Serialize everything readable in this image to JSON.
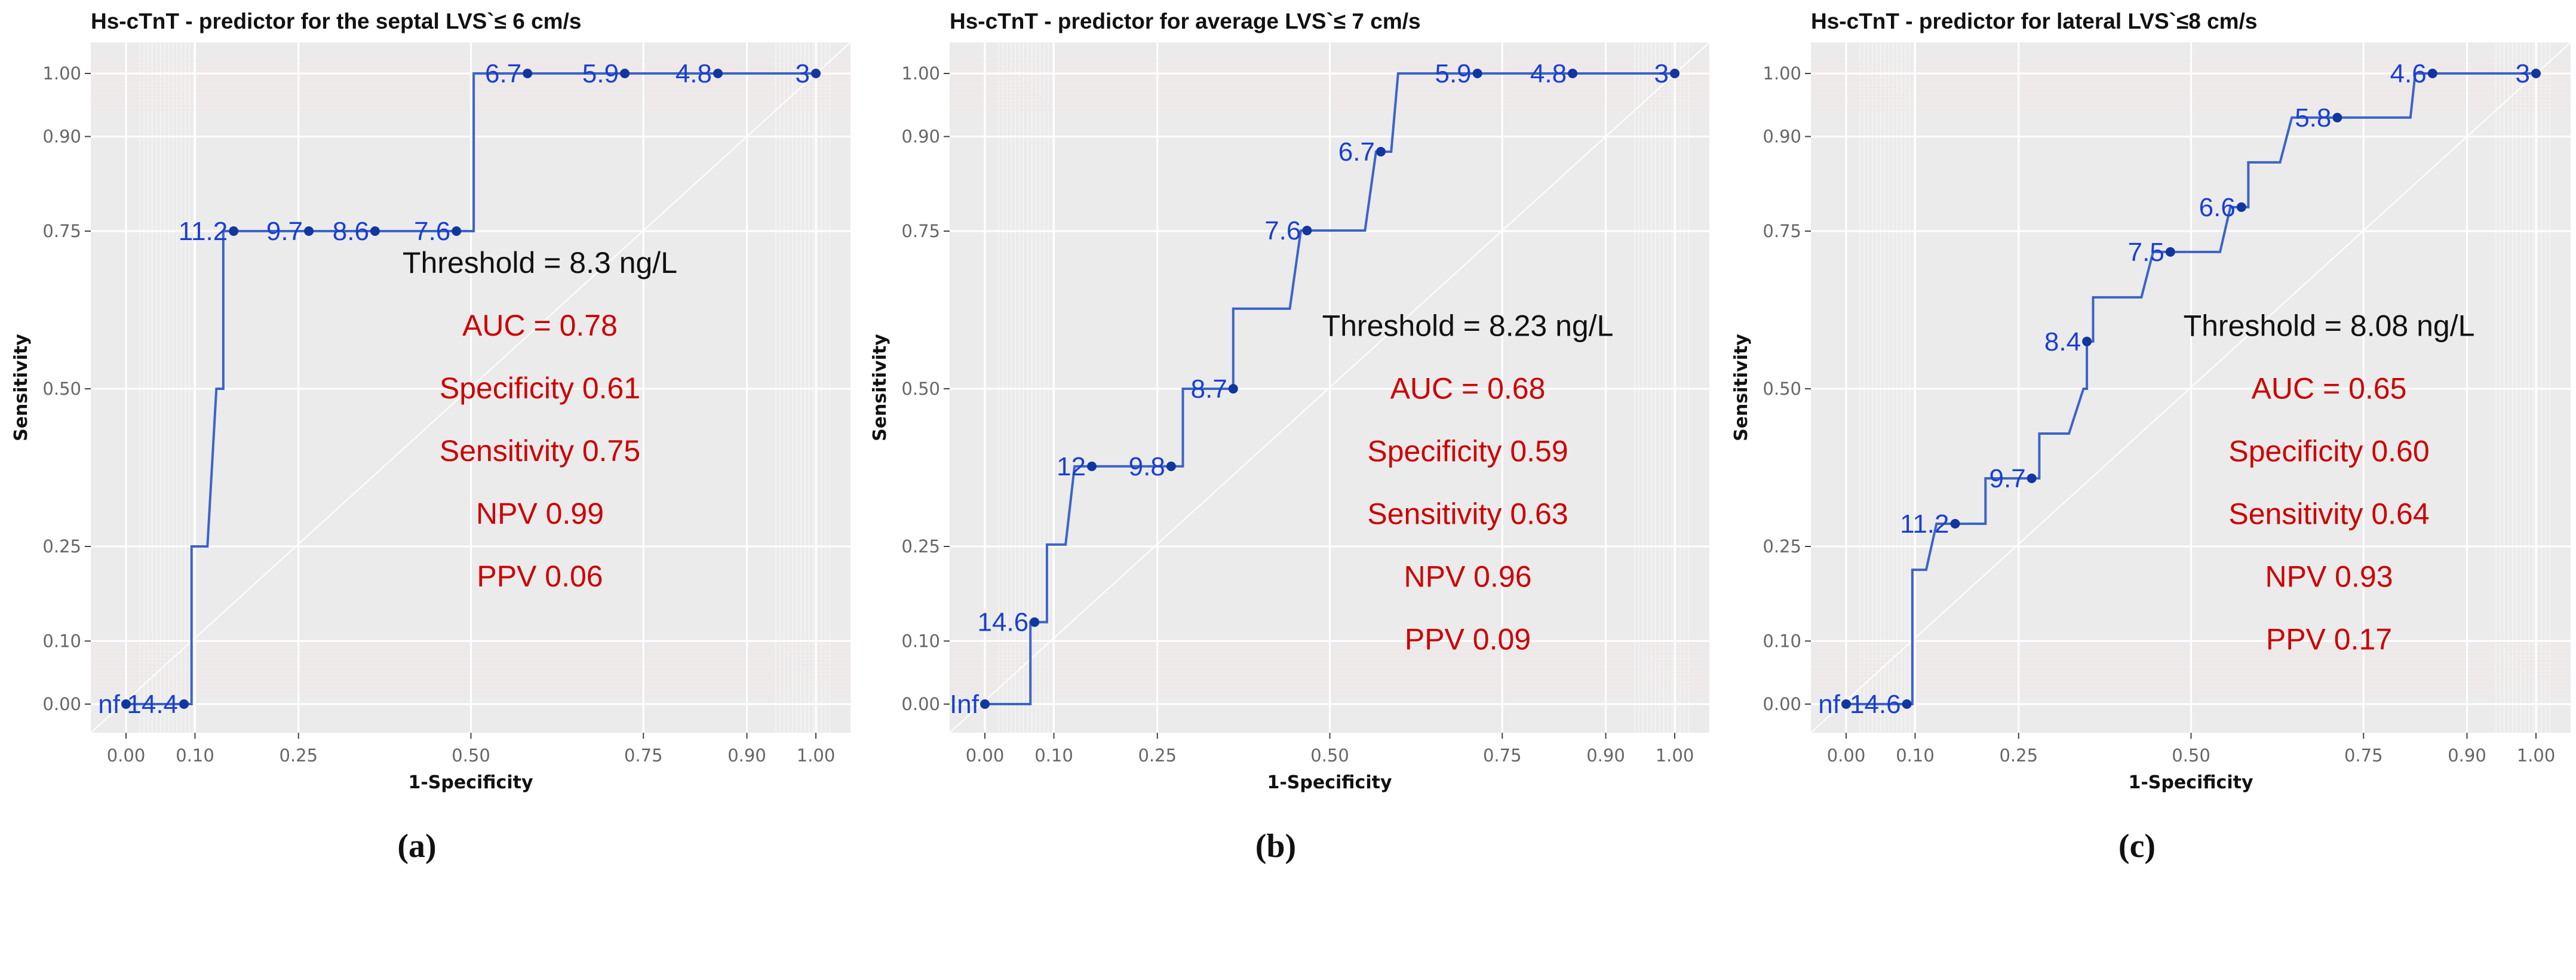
{
  "chart_data": [
    {
      "type": "line",
      "panel_caption": "(a)",
      "title": "Hs-cTnT - predictor for the septal LVS`≤ 6 cm/s",
      "xlabel": "1-Specificity",
      "ylabel": "Sensitivity",
      "xlim": [
        0,
        1
      ],
      "ylim": [
        0,
        1
      ],
      "xticks": [
        0,
        0.1,
        0.25,
        0.5,
        0.75,
        0.9,
        1
      ],
      "xtick_labels": [
        "0.00",
        "0.10",
        "0.25",
        "0.50",
        "0.75",
        "0.90",
        "1.00"
      ],
      "yticks": [
        0,
        0.1,
        0.25,
        0.5,
        0.75,
        0.9,
        1
      ],
      "ytick_labels": [
        "0.00",
        "0.10",
        "0.25",
        "0.50",
        "0.75",
        "0.90",
        "1.00"
      ],
      "grid": true,
      "curve": [
        [
          0,
          0
        ],
        [
          0.095,
          0
        ],
        [
          0.095,
          0.25
        ],
        [
          0.118,
          0.25
        ],
        [
          0.131,
          0.5
        ],
        [
          0.141,
          0.5
        ],
        [
          0.141,
          0.75
        ],
        [
          0.504,
          0.75
        ],
        [
          0.504,
          1
        ],
        [
          1,
          1
        ]
      ],
      "threshold_points": [
        {
          "label": "nf",
          "x": 0,
          "y": 0
        },
        {
          "label": "14.4",
          "x": 0.084,
          "y": 0
        },
        {
          "label": "11.2",
          "x": 0.156,
          "y": 0.75
        },
        {
          "label": "9.7",
          "x": 0.265,
          "y": 0.75
        },
        {
          "label": "8.6",
          "x": 0.361,
          "y": 0.75
        },
        {
          "label": "7.6",
          "x": 0.479,
          "y": 0.75
        },
        {
          "label": "6.7",
          "x": 0.582,
          "y": 1
        },
        {
          "label": "5.9",
          "x": 0.723,
          "y": 1
        },
        {
          "label": "4.8",
          "x": 0.858,
          "y": 1
        },
        {
          "label": "3",
          "x": 1,
          "y": 1
        }
      ],
      "annotations": {
        "threshold": "Threshold = 8.3 ng/L",
        "auc": "AUC = 0.78",
        "specificity": "Specificity 0.61",
        "sensitivity": "Sensitivity 0.75",
        "npv": "NPV 0.99",
        "ppv": "PPV 0.06"
      }
    },
    {
      "type": "line",
      "panel_caption": "(b)",
      "title": "Hs-cTnT - predictor for average LVS`≤ 7 cm/s",
      "xlabel": "1-Specificity",
      "ylabel": "Sensitivity",
      "xlim": [
        0,
        1
      ],
      "ylim": [
        0,
        1
      ],
      "xticks": [
        0,
        0.1,
        0.25,
        0.5,
        0.75,
        0.9,
        1
      ],
      "xtick_labels": [
        "0.00",
        "0.10",
        "0.25",
        "0.50",
        "0.75",
        "0.90",
        "1.00"
      ],
      "yticks": [
        0,
        0.1,
        0.25,
        0.5,
        0.75,
        0.9,
        1
      ],
      "ytick_labels": [
        "0.00",
        "0.10",
        "0.25",
        "0.50",
        "0.75",
        "0.90",
        "1.00"
      ],
      "grid": true,
      "curve": [
        [
          0,
          0
        ],
        [
          0.066,
          0
        ],
        [
          0.066,
          0.13
        ],
        [
          0.09,
          0.13
        ],
        [
          0.09,
          0.253
        ],
        [
          0.117,
          0.253
        ],
        [
          0.13,
          0.377
        ],
        [
          0.287,
          0.377
        ],
        [
          0.287,
          0.5
        ],
        [
          0.36,
          0.5
        ],
        [
          0.36,
          0.627
        ],
        [
          0.442,
          0.627
        ],
        [
          0.458,
          0.751
        ],
        [
          0.551,
          0.751
        ],
        [
          0.567,
          0.876
        ],
        [
          0.589,
          0.876
        ],
        [
          0.599,
          1
        ],
        [
          1,
          1
        ]
      ],
      "threshold_points": [
        {
          "label": "Inf",
          "x": 0,
          "y": 0
        },
        {
          "label": "14.6",
          "x": 0.072,
          "y": 0.13
        },
        {
          "label": "12",
          "x": 0.155,
          "y": 0.377
        },
        {
          "label": "9.8",
          "x": 0.27,
          "y": 0.377
        },
        {
          "label": "8.7",
          "x": 0.36,
          "y": 0.5
        },
        {
          "label": "7.6",
          "x": 0.467,
          "y": 0.751
        },
        {
          "label": "6.7",
          "x": 0.574,
          "y": 0.876
        },
        {
          "label": "5.9",
          "x": 0.714,
          "y": 1
        },
        {
          "label": "4.8",
          "x": 0.852,
          "y": 1
        },
        {
          "label": "3",
          "x": 1,
          "y": 1
        }
      ],
      "annotations": {
        "threshold": "Threshold = 8.23 ng/L",
        "auc": "AUC = 0.68",
        "specificity": "Specificity 0.59",
        "sensitivity": "Sensitivity 0.63",
        "npv": "NPV 0.96",
        "ppv": "PPV 0.09"
      }
    },
    {
      "type": "line",
      "panel_caption": "(c)",
      "title": "Hs-cTnT - predictor for lateral LVS`≤8 cm/s",
      "xlabel": "1-Specificity",
      "ylabel": "Sensitivity",
      "xlim": [
        0,
        1
      ],
      "ylim": [
        0,
        1
      ],
      "xticks": [
        0,
        0.1,
        0.25,
        0.5,
        0.75,
        0.9,
        1
      ],
      "xtick_labels": [
        "0.00",
        "0.10",
        "0.25",
        "0.50",
        "0.75",
        "0.90",
        "1.00"
      ],
      "yticks": [
        0,
        0.1,
        0.25,
        0.5,
        0.75,
        0.9,
        1
      ],
      "ytick_labels": [
        "0.00",
        "0.10",
        "0.25",
        "0.50",
        "0.75",
        "0.90",
        "1.00"
      ],
      "grid": true,
      "curve": [
        [
          0,
          0
        ],
        [
          0.096,
          0
        ],
        [
          0.096,
          0.213
        ],
        [
          0.116,
          0.213
        ],
        [
          0.131,
          0.286
        ],
        [
          0.202,
          0.286
        ],
        [
          0.202,
          0.358
        ],
        [
          0.28,
          0.358
        ],
        [
          0.28,
          0.429
        ],
        [
          0.323,
          0.429
        ],
        [
          0.344,
          0.5
        ],
        [
          0.349,
          0.5
        ],
        [
          0.349,
          0.575
        ],
        [
          0.358,
          0.575
        ],
        [
          0.358,
          0.645
        ],
        [
          0.428,
          0.645
        ],
        [
          0.445,
          0.717
        ],
        [
          0.542,
          0.717
        ],
        [
          0.557,
          0.788
        ],
        [
          0.583,
          0.788
        ],
        [
          0.583,
          0.859
        ],
        [
          0.629,
          0.859
        ],
        [
          0.646,
          0.93
        ],
        [
          0.818,
          0.93
        ],
        [
          0.825,
          1
        ],
        [
          1,
          1
        ]
      ],
      "threshold_points": [
        {
          "label": "nf",
          "x": 0,
          "y": 0
        },
        {
          "label": "14.6",
          "x": 0.088,
          "y": 0
        },
        {
          "label": "11.2",
          "x": 0.158,
          "y": 0.286
        },
        {
          "label": "9.7",
          "x": 0.269,
          "y": 0.358
        },
        {
          "label": "8.4",
          "x": 0.349,
          "y": 0.575
        },
        {
          "label": "7.5",
          "x": 0.47,
          "y": 0.717
        },
        {
          "label": "6.6",
          "x": 0.573,
          "y": 0.788
        },
        {
          "label": "5.8",
          "x": 0.712,
          "y": 0.93
        },
        {
          "label": "4.6",
          "x": 0.85,
          "y": 1
        },
        {
          "label": "3",
          "x": 1,
          "y": 1
        }
      ],
      "annotations": {
        "threshold": "Threshold = 8.08 ng/L",
        "auc": "AUC = 0.65",
        "specificity": "Specificity 0.60",
        "sensitivity": "Sensitivity 0.64",
        "npv": "NPV 0.93",
        "ppv": "PPV 0.17"
      }
    }
  ],
  "colors": {
    "curve": "#3c64c8",
    "point": "#1236a0",
    "panel_bg": "#ebebeb",
    "grid": "#ffffff",
    "stat_text": "#cc0000"
  }
}
